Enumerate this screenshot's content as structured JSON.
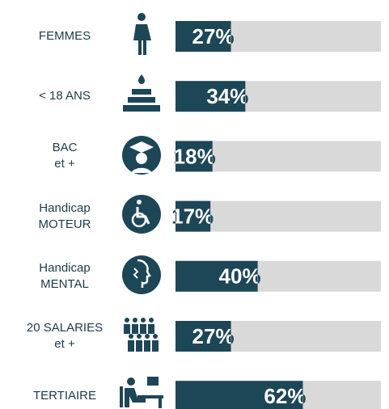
{
  "chart_data": {
    "type": "bar",
    "orientation": "horizontal",
    "categories": [
      "FEMMES",
      "< 18 ANS",
      "BAC\net +",
      "Handicap\nMOTEUR",
      "Handicap\nMENTAL",
      "20 SALARIES\net +",
      "TERTIAIRE"
    ],
    "values": [
      27,
      34,
      18,
      17,
      40,
      27,
      62
    ],
    "value_labels": [
      "27%",
      "34%",
      "18%",
      "17%",
      "40%",
      "27%",
      "62%"
    ],
    "color": "#1d4657",
    "track_color": "#d9d9d9",
    "xlim": [
      0,
      100
    ]
  }
}
